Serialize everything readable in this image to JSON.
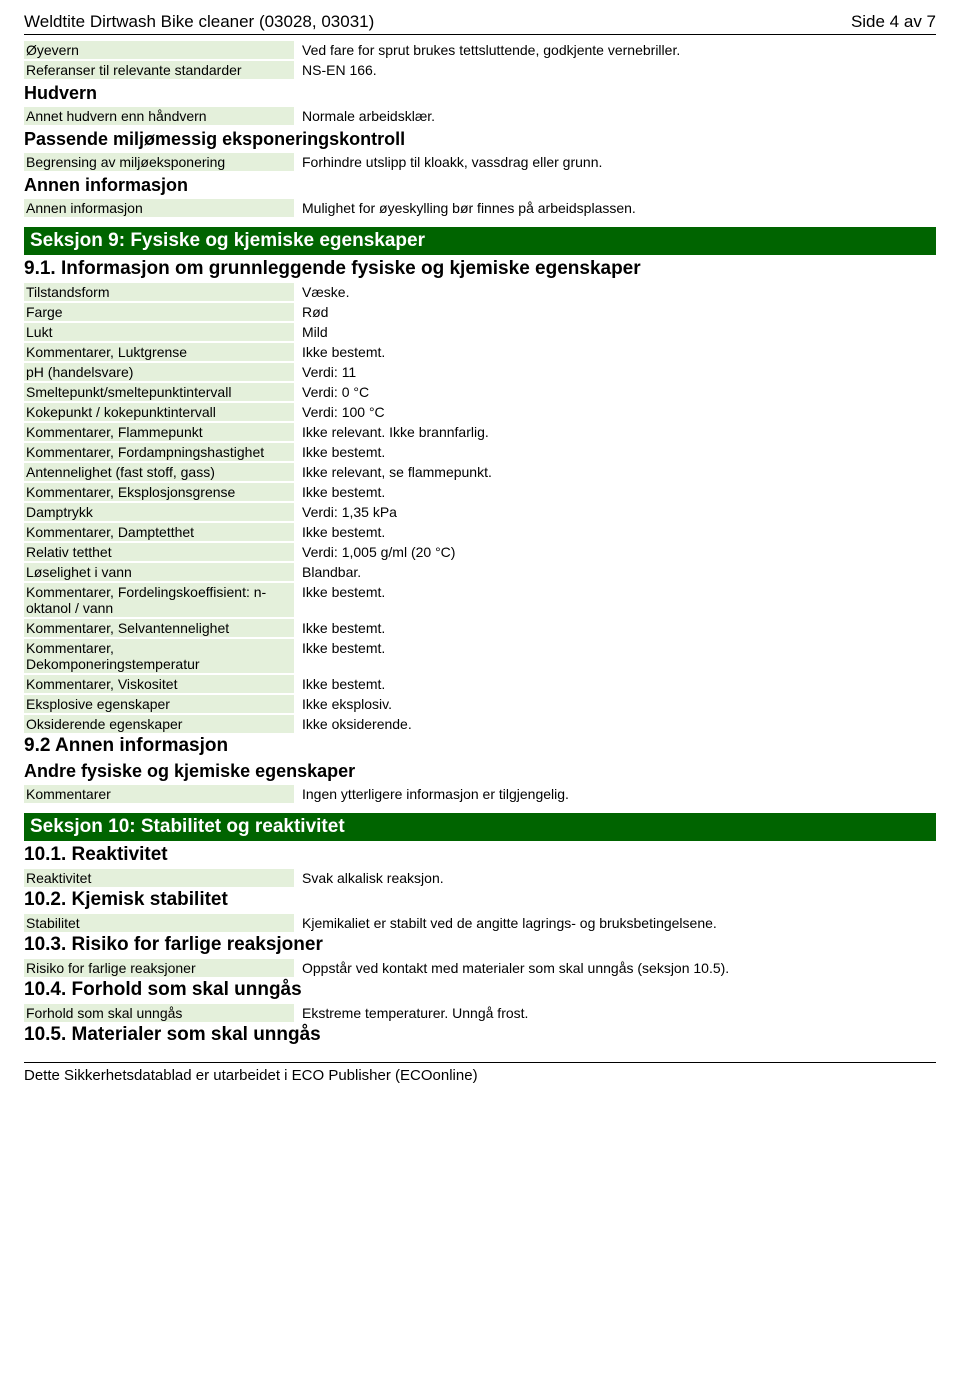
{
  "header": {
    "title": "Weldtite Dirtwash Bike cleaner (03028, 03031)",
    "page": "Side 4 av 7"
  },
  "top_block": {
    "rows1": [
      {
        "label": "Øyevern",
        "value": "Ved fare for sprut brukes tettsluttende, godkjente vernebriller."
      },
      {
        "label": "Referanser til relevante standarder",
        "value": "NS-EN 166."
      }
    ],
    "hudvern": "Hudvern",
    "rows2": [
      {
        "label": "Annet hudvern enn håndvern",
        "value": "Normale arbeidsklær."
      }
    ],
    "passende": "Passende miljømessig eksponeringskontroll",
    "rows3": [
      {
        "label": "Begrensing av miljøeksponering",
        "value": "Forhindre utslipp til kloakk, vassdrag eller grunn."
      }
    ],
    "annen": "Annen informasjon",
    "rows4": [
      {
        "label": "Annen informasjon",
        "value": "Mulighet for øyeskylling bør finnes på arbeidsplassen."
      }
    ]
  },
  "section9": {
    "bar": "Seksjon 9: Fysiske og kjemiske egenskaper",
    "sub1": "9.1. Informasjon om grunnleggende fysiske og kjemiske egenskaper",
    "rows": [
      {
        "label": "Tilstandsform",
        "value": "Væske."
      },
      {
        "label": "Farge",
        "value": "Rød"
      },
      {
        "label": "Lukt",
        "value": "Mild"
      },
      {
        "label": "Kommentarer, Luktgrense",
        "value": "Ikke bestemt."
      },
      {
        "label": "pH (handelsvare)",
        "value": "Verdi: 11"
      },
      {
        "label": "Smeltepunkt/smeltepunktintervall",
        "value": "Verdi: 0 °C"
      },
      {
        "label": "Kokepunkt / kokepunktintervall",
        "value": "Verdi: 100 °C"
      },
      {
        "label": "Kommentarer, Flammepunkt",
        "value": "Ikke relevant. Ikke brannfarlig."
      },
      {
        "label": "Kommentarer, Fordampningshastighet",
        "value": "Ikke bestemt."
      },
      {
        "label": "Antennelighet (fast stoff, gass)",
        "value": "Ikke relevant, se flammepunkt."
      },
      {
        "label": "Kommentarer, Eksplosjonsgrense",
        "value": "Ikke bestemt."
      },
      {
        "label": "Damptrykk",
        "value": "Verdi: 1,35 kPa"
      },
      {
        "label": "Kommentarer, Damptetthet",
        "value": "Ikke bestemt."
      },
      {
        "label": "Relativ tetthet",
        "value": "Verdi: 1,005 g/ml (20 °C)"
      },
      {
        "label": "Løselighet i vann",
        "value": "Blandbar."
      },
      {
        "label": "Kommentarer, Fordelingskoeffisient: n-oktanol / vann",
        "value": "Ikke bestemt."
      },
      {
        "label": "Kommentarer, Selvantennelighet",
        "value": "Ikke bestemt."
      },
      {
        "label": "Kommentarer, Dekomponeringstemperatur",
        "value": "Ikke bestemt."
      },
      {
        "label": "Kommentarer, Viskositet",
        "value": "Ikke bestemt."
      },
      {
        "label": "Eksplosive egenskaper",
        "value": "Ikke eksplosiv."
      },
      {
        "label": "Oksiderende egenskaper",
        "value": "Ikke oksiderende."
      }
    ],
    "sub2": "9.2 Annen informasjon",
    "sub3": "Andre fysiske og kjemiske egenskaper",
    "rows2": [
      {
        "label": "Kommentarer",
        "value": "Ingen ytterligere informasjon er tilgjengelig."
      }
    ]
  },
  "section10": {
    "bar": "Seksjon 10: Stabilitet og reaktivitet",
    "s1": "10.1. Reaktivitet",
    "r1": [
      {
        "label": "Reaktivitet",
        "value": "Svak alkalisk reaksjon."
      }
    ],
    "s2": "10.2. Kjemisk stabilitet",
    "r2": [
      {
        "label": "Stabilitet",
        "value": "Kjemikaliet er stabilt ved de angitte lagrings- og bruksbetingelsene."
      }
    ],
    "s3": "10.3. Risiko for farlige reaksjoner",
    "r3": [
      {
        "label": "Risiko for farlige reaksjoner",
        "value": "Oppstår ved kontakt med materialer som skal unngås (seksjon 10.5)."
      }
    ],
    "s4": "10.4. Forhold som skal unngås",
    "r4": [
      {
        "label": "Forhold som skal unngås",
        "value": "Ekstreme temperaturer. Unngå frost."
      }
    ],
    "s5": "10.5. Materialer som skal unngås"
  },
  "footer": "Dette Sikkerhetsdatablad er utarbeidet i ECO Publisher (ECOonline)"
}
